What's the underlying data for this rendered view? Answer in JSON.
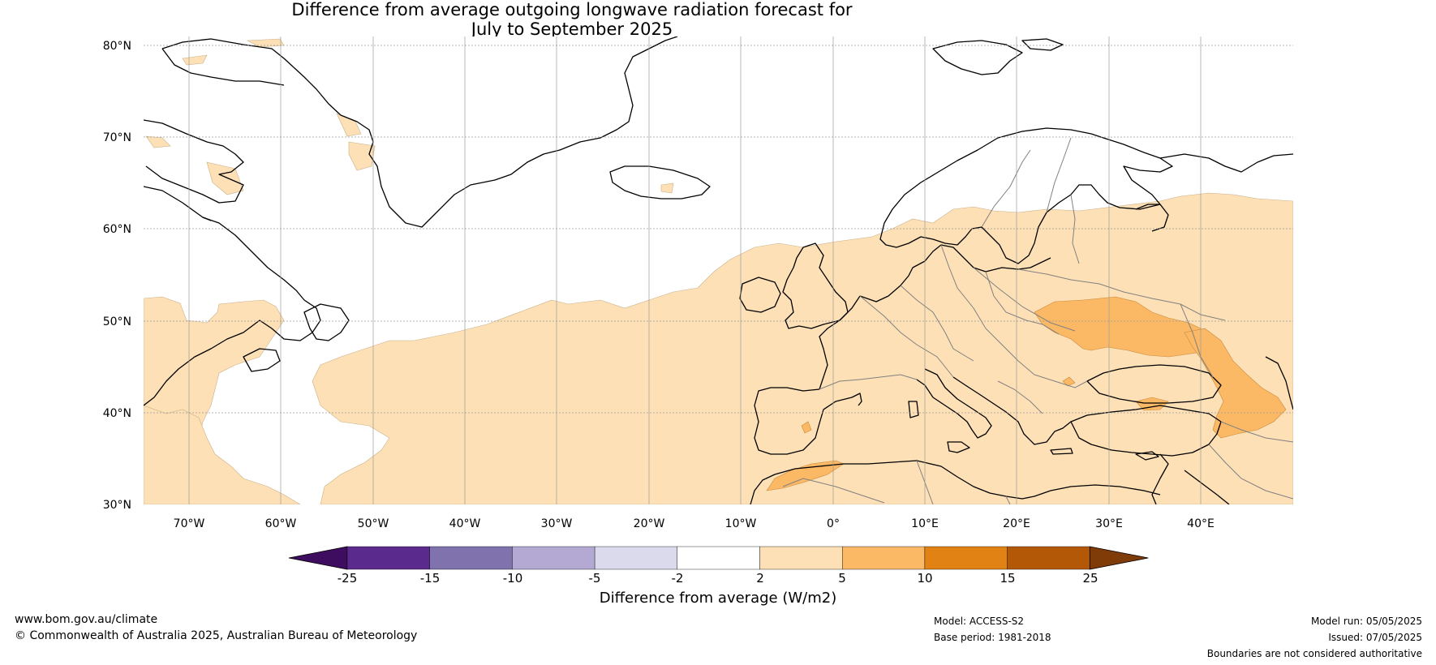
{
  "title": {
    "line1": "Difference from average outgoing longwave radiation forecast for",
    "line2": "July to September 2025"
  },
  "map": {
    "lat_labels": [
      "80°N",
      "70°N",
      "60°N",
      "50°N",
      "40°N",
      "30°N"
    ],
    "lon_labels": [
      "70°W",
      "60°W",
      "50°W",
      "40°W",
      "30°W",
      "20°W",
      "10°W",
      "0°",
      "10°E",
      "20°E",
      "30°E",
      "40°E"
    ],
    "colors": {
      "ocean": "#ffffff",
      "band_2_5": "#fde0b6",
      "band_5_10": "#fbb865",
      "coast": "#000000",
      "border": "#808080"
    }
  },
  "colorbar": {
    "ticks": [
      "-25",
      "-15",
      "-10",
      "-5",
      "-2",
      "2",
      "5",
      "10",
      "15",
      "25"
    ],
    "colors": [
      "#3f0d5f",
      "#5a2a8c",
      "#8073ad",
      "#b3a9d3",
      "#dbd9ec",
      "#ffffff",
      "#fde0b6",
      "#fbb865",
      "#e08214",
      "#b35806",
      "#7f3b08"
    ],
    "label": "Difference from average (W/m2)"
  },
  "footer": {
    "website": "www.bom.gov.au/climate",
    "copyright": "© Commonwealth of Australia 2025, Australian Bureau of Meteorology",
    "model": "Model: ACCESS-S2",
    "base_period": "Base period: 1981-2018",
    "model_run": "Model run: 05/05/2025",
    "issued": "Issued: 07/05/2025",
    "disclaimer": "Boundaries are not considered authoritative"
  }
}
